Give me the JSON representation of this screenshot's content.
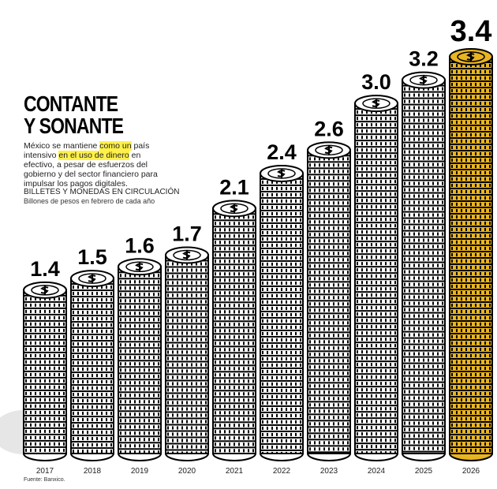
{
  "chart_data": {
    "type": "bar",
    "title": [
      "CONTANTE",
      "Y SONANTE"
    ],
    "description": [
      {
        "text": "México se mantiene ",
        "highlight": false
      },
      {
        "text": "como un",
        "highlight": true
      },
      {
        "text": " país intensivo ",
        "highlight": false
      },
      {
        "text": "en el uso de dinero",
        "highlight": true
      },
      {
        "text": " en efectivo, a pesar de esfuerzos del gobierno y del sector financiero para impulsar los pagos digitales.",
        "highlight": false
      }
    ],
    "highlight_color": "#fff04a",
    "subtitle": "BILLETES Y MONEDAS EN CIRCULACIÓN",
    "units": "Billones de pesos en febrero de cada año",
    "source": "Fuente: Banxico.",
    "categories": [
      "2017",
      "2018",
      "2019",
      "2020",
      "2021",
      "2022",
      "2023",
      "2024",
      "2025",
      "2026"
    ],
    "values": [
      1.4,
      1.5,
      1.6,
      1.7,
      2.1,
      2.4,
      2.6,
      3.0,
      3.2,
      3.4
    ],
    "value_labels": [
      "1.4",
      "1.5",
      "1.6",
      "1.7",
      "2.1",
      "2.4",
      "2.6",
      "3.0",
      "3.2",
      "3.4"
    ],
    "colors": [
      "#ffffff",
      "#ffffff",
      "#ffffff",
      "#ffffff",
      "#ffffff",
      "#ffffff",
      "#ffffff",
      "#ffffff",
      "#ffffff",
      "#e8b421"
    ]
  }
}
